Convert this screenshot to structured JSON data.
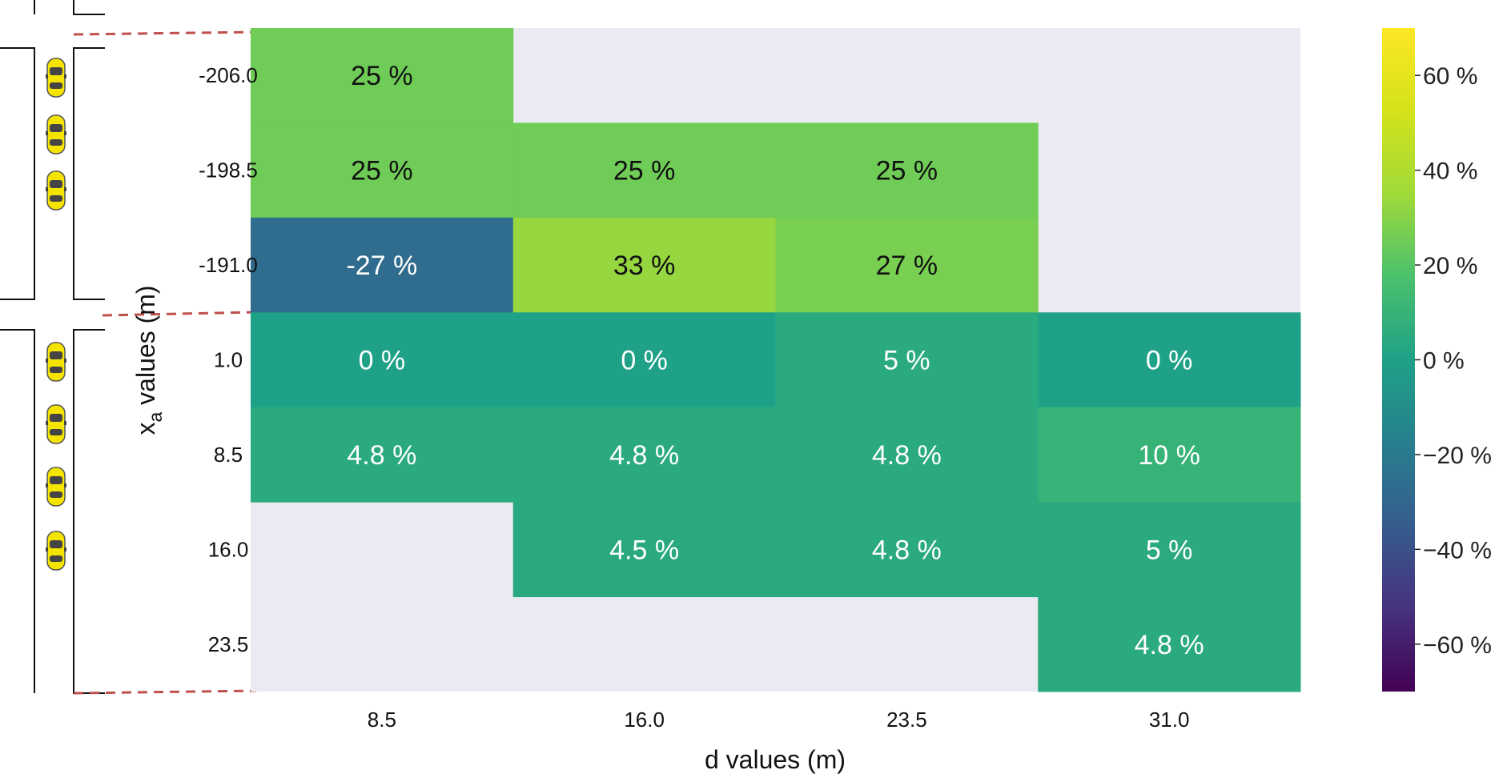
{
  "chart_data": {
    "type": "heatmap",
    "xlabel": "d values (m)",
    "ylabel_main": "x",
    "ylabel_sub": "a",
    "ylabel_rest": " values (m)",
    "x_ticks": [
      "8.5",
      "16.0",
      "23.5",
      "31.0"
    ],
    "y_ticks": [
      "-206.0",
      "-198.5",
      "-191.0",
      "1.0",
      "8.5",
      "16.0",
      "23.5"
    ],
    "cells": [
      {
        "row": 0,
        "col": 0,
        "value": 25,
        "label": "25"
      },
      {
        "row": 1,
        "col": 0,
        "value": 25,
        "label": "25"
      },
      {
        "row": 1,
        "col": 1,
        "value": 25,
        "label": "25"
      },
      {
        "row": 1,
        "col": 2,
        "value": 25,
        "label": "25"
      },
      {
        "row": 2,
        "col": 0,
        "value": -27,
        "label": "-27"
      },
      {
        "row": 2,
        "col": 1,
        "value": 33,
        "label": "33"
      },
      {
        "row": 2,
        "col": 2,
        "value": 27,
        "label": "27"
      },
      {
        "row": 3,
        "col": 0,
        "value": 0,
        "label": "0"
      },
      {
        "row": 3,
        "col": 1,
        "value": 0,
        "label": "0"
      },
      {
        "row": 3,
        "col": 2,
        "value": 5,
        "label": "5"
      },
      {
        "row": 3,
        "col": 3,
        "value": 0,
        "label": "0"
      },
      {
        "row": 4,
        "col": 0,
        "value": 4.8,
        "label": "4.8"
      },
      {
        "row": 4,
        "col": 1,
        "value": 4.8,
        "label": "4.8"
      },
      {
        "row": 4,
        "col": 2,
        "value": 4.8,
        "label": "4.8"
      },
      {
        "row": 4,
        "col": 3,
        "value": 10,
        "label": "10"
      },
      {
        "row": 5,
        "col": 1,
        "value": 4.5,
        "label": "4.5"
      },
      {
        "row": 5,
        "col": 2,
        "value": 4.8,
        "label": "4.8"
      },
      {
        "row": 5,
        "col": 3,
        "value": 5,
        "label": "5"
      },
      {
        "row": 6,
        "col": 3,
        "value": 4.8,
        "label": "4.8"
      }
    ],
    "value_suffix": "%",
    "colorbar": {
      "colormap": "viridis",
      "range": [
        -70,
        70
      ],
      "ticks": [
        60,
        40,
        20,
        0,
        -20,
        -40,
        -60
      ],
      "tick_labels": [
        "60",
        "40",
        "20",
        "0",
        "−20",
        "−40",
        "−60"
      ],
      "tick_suffix": "%"
    },
    "missing_color": "#eaeaf2"
  }
}
